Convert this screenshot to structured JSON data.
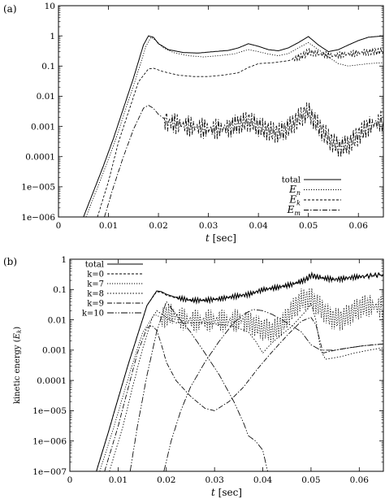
{
  "chart_data": [
    {
      "panel_label": "(a)",
      "type": "line",
      "scale_y": "log",
      "xlabel_var": "t",
      "xlabel_unit": "[sec]",
      "ylabel": "",
      "xlim": [
        0,
        0.065
      ],
      "ylim": [
        1e-06,
        10
      ],
      "x_ticks": [
        {
          "v": 0,
          "label": "0"
        },
        {
          "v": 0.01,
          "label": "0.01"
        },
        {
          "v": 0.02,
          "label": "0.02"
        },
        {
          "v": 0.03,
          "label": "0.03"
        },
        {
          "v": 0.04,
          "label": "0.04"
        },
        {
          "v": 0.05,
          "label": "0.05"
        },
        {
          "v": 0.06,
          "label": "0.06"
        }
      ],
      "y_ticks": [
        {
          "v": 1e-06,
          "label": "1e−006"
        },
        {
          "v": 1e-05,
          "label": "1e−005"
        },
        {
          "v": 0.0001,
          "label": "0.0001"
        },
        {
          "v": 0.001,
          "label": "0.001"
        },
        {
          "v": 0.01,
          "label": "0.01"
        },
        {
          "v": 0.1,
          "label": "0.1"
        },
        {
          "v": 1,
          "label": "1"
        },
        {
          "v": 10,
          "label": "10"
        }
      ],
      "legend_position": "bottom-right",
      "series": [
        {
          "key": "total",
          "name": "total",
          "base": "E",
          "sub": "",
          "dash": "",
          "x": [
            0.005,
            0.007,
            0.009,
            0.011,
            0.013,
            0.015,
            0.017,
            0.018,
            0.019,
            0.02,
            0.022,
            0.025,
            0.028,
            0.031,
            0.034,
            0.036,
            0.038,
            0.04,
            0.042,
            0.044,
            0.046,
            0.048,
            0.05,
            0.052,
            0.054,
            0.056,
            0.058,
            0.06,
            0.062,
            0.065
          ],
          "y": [
            1e-06,
            7e-06,
            5e-05,
            0.0004,
            0.004,
            0.04,
            0.5,
            1.0,
            0.9,
            0.55,
            0.35,
            0.28,
            0.27,
            0.3,
            0.33,
            0.4,
            0.55,
            0.45,
            0.35,
            0.32,
            0.4,
            0.6,
            0.95,
            0.5,
            0.3,
            0.35,
            0.5,
            0.7,
            0.9,
            1.0
          ],
          "osc": [
            0,
            0.15
          ]
        },
        {
          "key": "en",
          "name": "",
          "base": "E",
          "sub": "n",
          "dash": "1.2,1.8",
          "x": [
            0.0055,
            0.0075,
            0.0095,
            0.0115,
            0.0135,
            0.0155,
            0.0175,
            0.0185,
            0.0195,
            0.021,
            0.023,
            0.026,
            0.029,
            0.032,
            0.035,
            0.038,
            0.04,
            0.042,
            0.044,
            0.046,
            0.048,
            0.05,
            0.052,
            0.054,
            0.056,
            0.058,
            0.06,
            0.062,
            0.065
          ],
          "y": [
            1e-06,
            7e-06,
            5e-05,
            0.0004,
            0.004,
            0.04,
            0.45,
            0.9,
            0.7,
            0.4,
            0.28,
            0.22,
            0.2,
            0.22,
            0.25,
            0.35,
            0.3,
            0.25,
            0.22,
            0.26,
            0.4,
            0.6,
            0.35,
            0.2,
            0.12,
            0.1,
            0.11,
            0.12,
            0.13
          ],
          "osc": [
            0,
            0.1
          ]
        },
        {
          "key": "ek",
          "name": "",
          "base": "E",
          "sub": "k",
          "dash": "3,2",
          "x": [
            0.0078,
            0.01,
            0.012,
            0.014,
            0.016,
            0.018,
            0.019,
            0.021,
            0.024,
            0.027,
            0.03,
            0.033,
            0.036,
            0.038,
            0.04,
            0.043,
            0.046,
            0.049,
            0.05,
            0.052,
            0.055,
            0.058,
            0.061,
            0.063,
            0.065
          ],
          "y": [
            1e-06,
            1.5e-05,
            0.0003,
            0.003,
            0.03,
            0.08,
            0.085,
            0.065,
            0.05,
            0.045,
            0.045,
            0.05,
            0.06,
            0.09,
            0.12,
            0.13,
            0.15,
            0.22,
            0.3,
            0.25,
            0.22,
            0.25,
            0.28,
            0.3,
            0.32
          ],
          "osc": [
            0.047,
            0.12
          ]
        },
        {
          "key": "em",
          "name": "",
          "base": "E",
          "sub": "m",
          "dash": "6,2,1.5,2",
          "x": [
            0.0092,
            0.011,
            0.013,
            0.015,
            0.017,
            0.018,
            0.019,
            0.02,
            0.022,
            0.025,
            0.028,
            0.031,
            0.034,
            0.036,
            0.038,
            0.04,
            0.042,
            0.044,
            0.046,
            0.048,
            0.05,
            0.052,
            0.054,
            0.056,
            0.058,
            0.06,
            0.062,
            0.065
          ],
          "y": [
            1e-06,
            1e-05,
            0.0001,
            0.0008,
            0.004,
            0.005,
            0.004,
            0.0025,
            0.0014,
            0.0011,
            0.0009,
            0.0008,
            0.0009,
            0.0012,
            0.0015,
            0.001,
            0.0007,
            0.0006,
            0.0009,
            0.0018,
            0.0032,
            0.001,
            0.0004,
            0.0002,
            0.00025,
            0.0005,
            0.001,
            0.0016
          ],
          "osc": [
            0.021,
            0.35
          ]
        }
      ]
    },
    {
      "panel_label": "(b)",
      "type": "line",
      "scale_y": "log",
      "xlabel_var": "t",
      "xlabel_unit": "[sec]",
      "ylabel_text": "kinetic energy (",
      "ylabel_var": "E",
      "ylabel_sub": "k",
      "ylabel_end": ")",
      "xlim": [
        0,
        0.065
      ],
      "ylim": [
        1e-07,
        1
      ],
      "x_ticks": [
        {
          "v": 0,
          "label": "0"
        },
        {
          "v": 0.01,
          "label": "0.01"
        },
        {
          "v": 0.02,
          "label": "0.02"
        },
        {
          "v": 0.03,
          "label": "0.03"
        },
        {
          "v": 0.04,
          "label": "0.04"
        },
        {
          "v": 0.05,
          "label": "0.05"
        },
        {
          "v": 0.06,
          "label": "0.06"
        }
      ],
      "y_ticks": [
        {
          "v": 1e-07,
          "label": "1e−007"
        },
        {
          "v": 1e-06,
          "label": "1e−006"
        },
        {
          "v": 1e-05,
          "label": "1e−005"
        },
        {
          "v": 0.0001,
          "label": "0.0001"
        },
        {
          "v": 0.001,
          "label": "0.001"
        },
        {
          "v": 0.01,
          "label": "0.01"
        },
        {
          "v": 0.1,
          "label": "0.1"
        },
        {
          "v": 1,
          "label": "1"
        }
      ],
      "legend_position": "top-left",
      "series": [
        {
          "key": "total",
          "name": "total",
          "dash": "",
          "x": [
            0.0055,
            0.008,
            0.01,
            0.012,
            0.014,
            0.016,
            0.018,
            0.019,
            0.02,
            0.022,
            0.025,
            0.028,
            0.031,
            0.034,
            0.037,
            0.04,
            0.043,
            0.046,
            0.049,
            0.05,
            0.052,
            0.055,
            0.058,
            0.061,
            0.065
          ],
          "y": [
            1e-07,
            2e-06,
            2.5e-05,
            0.0003,
            0.003,
            0.03,
            0.09,
            0.085,
            0.07,
            0.055,
            0.045,
            0.045,
            0.05,
            0.06,
            0.07,
            0.1,
            0.12,
            0.15,
            0.22,
            0.3,
            0.25,
            0.22,
            0.25,
            0.28,
            0.32
          ],
          "osc": [
            0.022,
            0.08
          ]
        },
        {
          "key": "k0",
          "name": "k=0",
          "dash": "3,2",
          "x": [
            0.0055,
            0.008,
            0.01,
            0.012,
            0.014,
            0.016,
            0.018,
            0.019,
            0.02,
            0.022,
            0.025,
            0.028,
            0.031,
            0.034,
            0.037,
            0.04,
            0.043,
            0.046,
            0.049,
            0.05,
            0.052,
            0.055,
            0.058,
            0.061,
            0.065
          ],
          "y": [
            1e-07,
            2e-06,
            2.5e-05,
            0.0003,
            0.003,
            0.03,
            0.085,
            0.08,
            0.065,
            0.052,
            0.042,
            0.042,
            0.047,
            0.056,
            0.065,
            0.095,
            0.11,
            0.14,
            0.2,
            0.28,
            0.23,
            0.2,
            0.23,
            0.26,
            0.3
          ],
          "osc": [
            0.022,
            0.08
          ]
        },
        {
          "key": "k7",
          "name": "k=7",
          "dash": "1.2,1.8",
          "x": [
            0.0062,
            0.009,
            0.011,
            0.013,
            0.015,
            0.0175,
            0.019,
            0.021,
            0.024,
            0.027,
            0.03,
            0.033,
            0.036,
            0.038,
            0.04,
            0.042,
            0.044,
            0.046,
            0.048,
            0.05,
            0.052,
            0.054,
            0.056,
            0.058,
            0.06,
            0.062,
            0.065
          ],
          "y": [
            1e-07,
            2.5e-06,
            3e-05,
            0.00035,
            0.0035,
            0.015,
            0.012,
            0.015,
            0.01,
            0.009,
            0.01,
            0.009,
            0.01,
            0.007,
            0.005,
            0.004,
            0.007,
            0.02,
            0.045,
            0.05,
            0.025,
            0.012,
            0.01,
            0.015,
            0.025,
            0.03,
            0.025
          ],
          "osc": [
            0.019,
            0.38
          ]
        },
        {
          "key": "k8",
          "name": "k=8",
          "dash": "1.5,2",
          "x": [
            0.0082,
            0.011,
            0.013,
            0.015,
            0.017,
            0.018,
            0.02,
            0.022,
            0.025,
            0.028,
            0.031,
            0.034,
            0.037,
            0.0385,
            0.04,
            0.0415,
            0.043,
            0.046,
            0.049,
            0.05,
            0.051,
            0.052,
            0.053,
            0.056,
            0.059,
            0.062,
            0.065
          ],
          "y": [
            1e-07,
            3e-06,
            6e-05,
            0.001,
            0.011,
            0.02,
            0.012,
            0.008,
            0.008,
            0.008,
            0.007,
            0.006,
            0.004,
            0.002,
            0.0008,
            0.0015,
            0.0025,
            0.006,
            0.02,
            0.035,
            0.01,
            0.001,
            0.0005,
            0.0006,
            0.0008,
            0.001,
            0.0012
          ],
          "osc": [
            0,
            0.1
          ]
        },
        {
          "key": "k9",
          "name": "k=9",
          "dash": "6,2,1.5,2",
          "x": [
            0.0072,
            0.01,
            0.012,
            0.014,
            0.016,
            0.017,
            0.018,
            0.019,
            0.02,
            0.022,
            0.025,
            0.028,
            0.03,
            0.033,
            0.036,
            0.039,
            0.042,
            0.045,
            0.048,
            0.05,
            0.051,
            0.0525,
            0.055,
            0.058,
            0.061,
            0.065
          ],
          "y": [
            1e-07,
            3e-06,
            5e-05,
            0.0008,
            0.0055,
            0.0065,
            0.0045,
            0.0015,
            0.0004,
            0.0001,
            3e-05,
            1.2e-05,
            1e-05,
            2e-05,
            6e-05,
            0.00025,
            0.0009,
            0.003,
            0.009,
            0.012,
            0.007,
            0.0008,
            0.001,
            0.0012,
            0.0014,
            0.0016
          ],
          "osc": [
            0,
            0.1
          ]
        },
        {
          "key": "k10",
          "name": "k=10",
          "dash": "8,2,1.5,2,1.5,2",
          "x": [
            0.0125,
            0.014,
            0.016,
            0.018,
            0.02,
            0.022,
            0.025,
            0.028,
            0.031,
            0.034,
            0.036,
            0.037,
            0.0385,
            0.04,
            0.041
          ],
          "y": [
            1e-07,
            3e-06,
            0.00015,
            0.004,
            0.04,
            0.015,
            0.004,
            0.0008,
            0.00015,
            2e-05,
            4e-06,
            1.5e-06,
            1e-06,
            5e-07,
            1e-07
          ],
          "osc": [
            0,
            0.1
          ]
        },
        {
          "key": "k10b",
          "name": "",
          "dash": "8,2,1.5,2,1.5,2",
          "x": [
            0.0195,
            0.021,
            0.023,
            0.025,
            0.028,
            0.031,
            0.034,
            0.036,
            0.038,
            0.04,
            0.042,
            0.045,
            0.048,
            0.05,
            0.052,
            0.055,
            0.058,
            0.061,
            0.065
          ],
          "y": [
            1e-07,
            1e-06,
            1e-05,
            6e-05,
            0.0004,
            0.002,
            0.008,
            0.015,
            0.022,
            0.02,
            0.015,
            0.008,
            0.004,
            0.0015,
            0.001,
            0.001,
            0.0012,
            0.0014,
            0.0016
          ],
          "osc": [
            0,
            0.1
          ]
        }
      ]
    }
  ]
}
